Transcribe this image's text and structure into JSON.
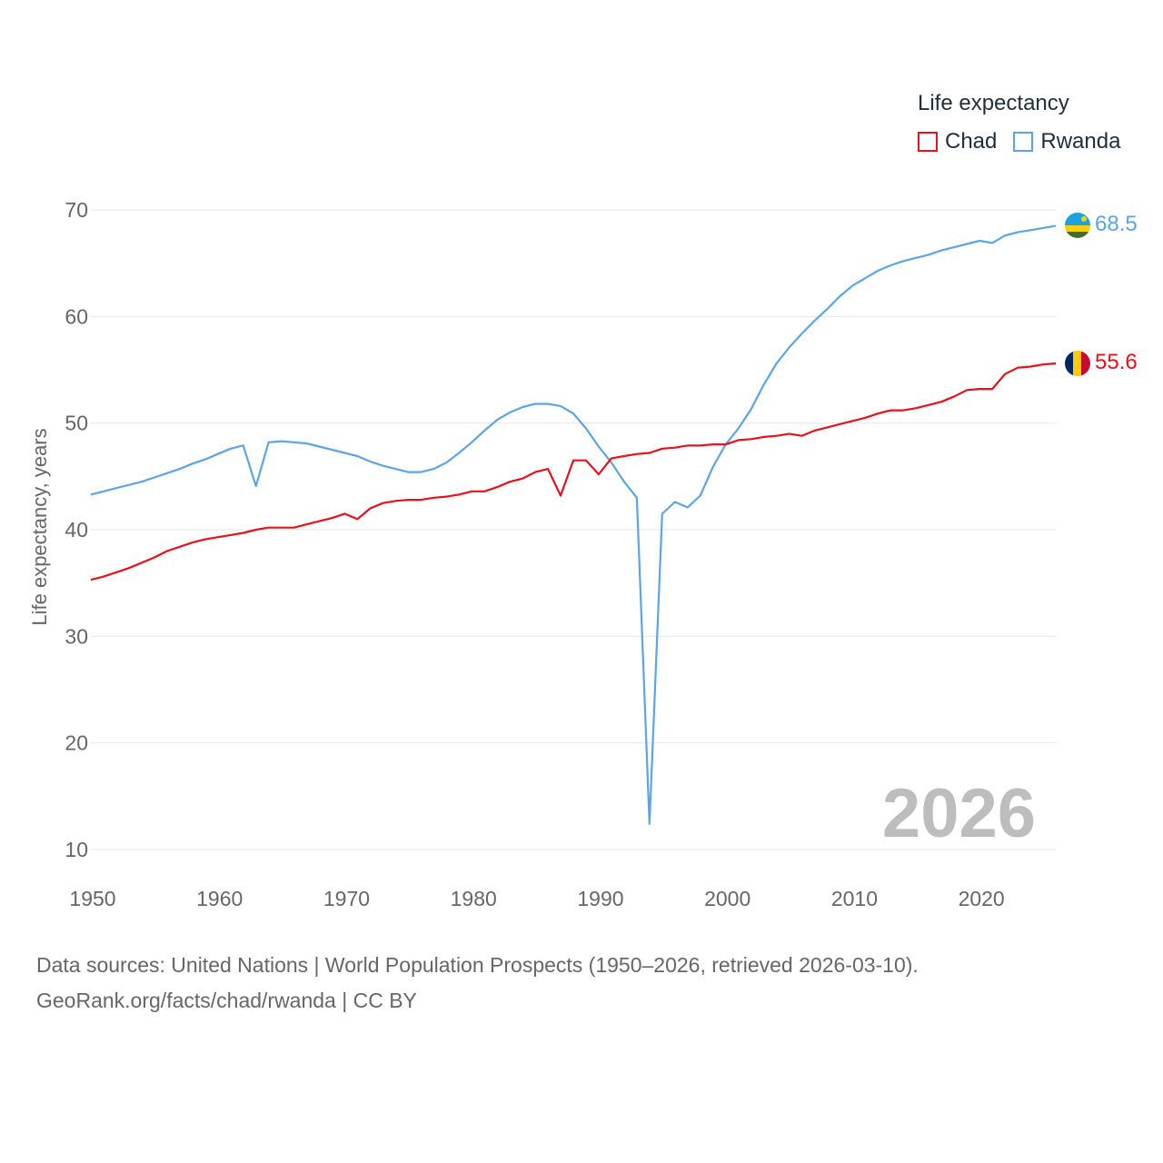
{
  "legend": {
    "title": "Life expectancy",
    "items": [
      {
        "label": "Chad",
        "color": "#e8101a"
      },
      {
        "label": "Rwanda",
        "color": "#5aa5e6"
      }
    ]
  },
  "source": {
    "line1": "Data sources: United Nations | World Population Prospects (1950–2026, retrieved 2026-03-10).",
    "line2": "GeoRank.org/facts/chad/rwanda | CC BY"
  },
  "chart_data": {
    "type": "line",
    "title": "Life expectancy",
    "xlabel": "",
    "ylabel": "Life expectancy, years",
    "xlim": [
      1950,
      2026
    ],
    "ylim": [
      10,
      70
    ],
    "x_ticks": [
      "1950",
      "1960",
      "1970",
      "1980",
      "1990",
      "2000",
      "2010",
      "2020"
    ],
    "y_ticks": [
      "10",
      "20",
      "30",
      "40",
      "50",
      "60",
      "70"
    ],
    "year_label": "2026",
    "x": [
      1950,
      1951,
      1952,
      1953,
      1954,
      1955,
      1956,
      1957,
      1958,
      1959,
      1960,
      1961,
      1962,
      1963,
      1964,
      1965,
      1966,
      1967,
      1968,
      1969,
      1970,
      1971,
      1972,
      1973,
      1974,
      1975,
      1976,
      1977,
      1978,
      1979,
      1980,
      1981,
      1982,
      1983,
      1984,
      1985,
      1986,
      1987,
      1988,
      1989,
      1990,
      1991,
      1992,
      1993,
      1994,
      1995,
      1996,
      1997,
      1998,
      1999,
      2000,
      2001,
      2002,
      2003,
      2004,
      2005,
      2006,
      2007,
      2008,
      2009,
      2010,
      2011,
      2012,
      2013,
      2014,
      2015,
      2016,
      2017,
      2018,
      2019,
      2020,
      2021,
      2022,
      2023,
      2024,
      2025,
      2026
    ],
    "series": [
      {
        "name": "Chad",
        "color": "#e8101a",
        "end_label": "55.6",
        "values": [
          35.3,
          35.6,
          36.0,
          36.4,
          36.9,
          37.4,
          38.0,
          38.4,
          38.8,
          39.1,
          39.3,
          39.5,
          39.7,
          40.0,
          40.2,
          40.2,
          40.2,
          40.5,
          40.8,
          41.1,
          41.5,
          41.0,
          42.0,
          42.5,
          42.7,
          42.8,
          42.8,
          43.0,
          43.1,
          43.3,
          43.6,
          43.6,
          44.0,
          44.5,
          44.8,
          45.4,
          45.7,
          43.2,
          46.5,
          46.5,
          45.2,
          46.7,
          46.9,
          47.1,
          47.2,
          47.6,
          47.7,
          47.9,
          47.9,
          48.0,
          48.0,
          48.4,
          48.5,
          48.7,
          48.8,
          49.0,
          48.8,
          49.3,
          49.6,
          49.9,
          50.2,
          50.5,
          50.9,
          51.2,
          51.2,
          51.4,
          51.7,
          52.0,
          52.5,
          53.1,
          53.2,
          53.2,
          54.6,
          55.2,
          55.3,
          55.5,
          55.6
        ]
      },
      {
        "name": "Rwanda",
        "color": "#5aa5e6",
        "end_label": "68.5",
        "values": [
          43.3,
          43.6,
          43.9,
          44.2,
          44.5,
          44.9,
          45.3,
          45.7,
          46.2,
          46.6,
          47.1,
          47.6,
          47.9,
          44.1,
          48.2,
          48.3,
          48.2,
          48.1,
          47.8,
          47.5,
          47.2,
          46.9,
          46.4,
          46.0,
          45.7,
          45.4,
          45.4,
          45.7,
          46.3,
          47.2,
          48.2,
          49.3,
          50.3,
          51.0,
          51.5,
          51.8,
          51.8,
          51.6,
          50.9,
          49.5,
          47.8,
          46.3,
          44.5,
          43.0,
          12.4,
          41.5,
          42.6,
          42.1,
          43.2,
          45.9,
          48.0,
          49.5,
          51.3,
          53.6,
          55.6,
          57.1,
          58.4,
          59.6,
          60.7,
          61.9,
          62.9,
          63.6,
          64.3,
          64.8,
          65.2,
          65.5,
          65.8,
          66.2,
          66.5,
          66.8,
          67.1,
          66.9,
          67.6,
          67.9,
          68.1,
          68.3,
          68.5
        ]
      }
    ]
  }
}
